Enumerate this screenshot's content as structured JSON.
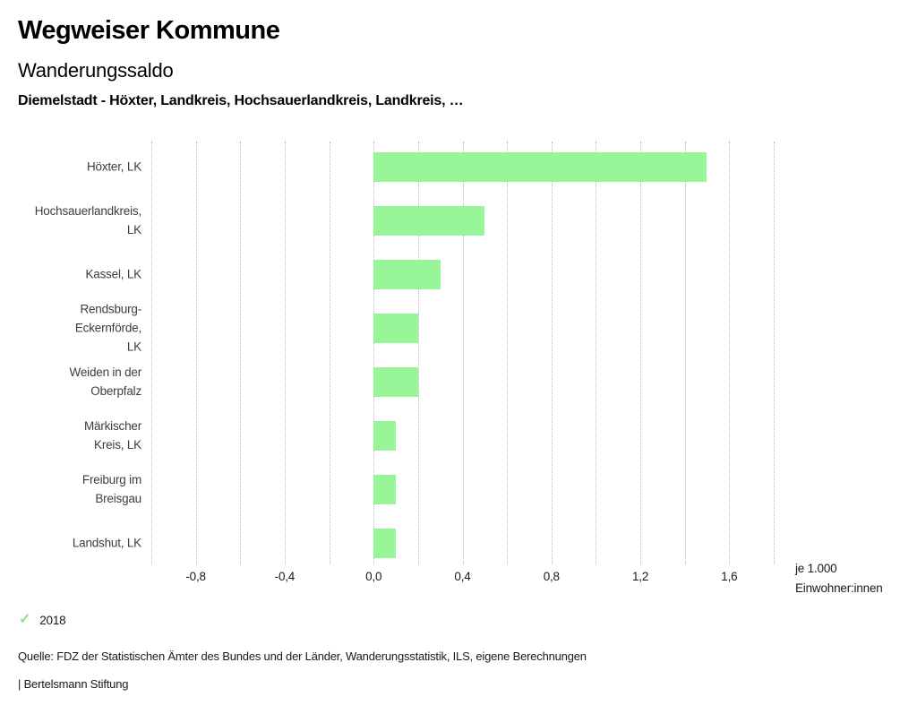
{
  "header": {
    "title": "Wegweiser Kommune",
    "subtitle": "Wanderungssaldo",
    "selection": "Diemelstadt - Höxter, Landkreis, Hochsauerlandkreis, Landkreis, …"
  },
  "chart_data": {
    "type": "bar",
    "orientation": "horizontal",
    "title": "Wanderungssaldo",
    "categories": [
      "Höxter, LK",
      "Hochsauerlandkreis,\nLK",
      "Kassel, LK",
      "Rendsburg-\nEckernförde,\nLK",
      "Weiden in der\nOberpfalz",
      "Märkischer\nKreis, LK",
      "Freiburg im\nBreisgau",
      "Landshut, LK"
    ],
    "series": [
      {
        "name": "2018",
        "values": [
          1.5,
          0.5,
          0.3,
          0.2,
          0.2,
          0.1,
          0.1,
          0.1
        ]
      }
    ],
    "xlim": [
      -1.0,
      1.8
    ],
    "grid_step": 0.2,
    "grid": true,
    "xticks": [
      {
        "value": -0.8,
        "label": "-0,8"
      },
      {
        "value": -0.4,
        "label": "-0,4"
      },
      {
        "value": 0.0,
        "label": "0,0"
      },
      {
        "value": 0.4,
        "label": "0,4"
      },
      {
        "value": 0.8,
        "label": "0,8"
      },
      {
        "value": 1.2,
        "label": "1,2"
      },
      {
        "value": 1.6,
        "label": "1,6"
      }
    ],
    "unit_lines": [
      "je 1.000",
      "Einwohner:innen"
    ],
    "bar_color": "#98f698",
    "legend_position": "bottom-left"
  },
  "legend": {
    "items": [
      {
        "label": "2018",
        "icon": "checkmark",
        "color": "#8be28b"
      }
    ]
  },
  "footer": {
    "source": "Quelle: FDZ der Statistischen Ämter des Bundes und der Länder, Wanderungsstatistik, ILS, eigene Berechnungen",
    "branding": "| Bertelsmann Stiftung"
  }
}
